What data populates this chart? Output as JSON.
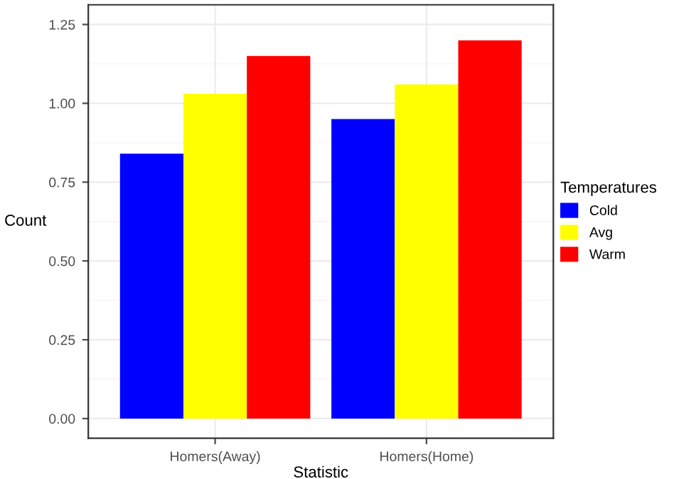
{
  "chart_data": {
    "type": "bar",
    "xlabel": "Statistic",
    "ylabel": "Count",
    "legend_title": "Temperatures",
    "categories": [
      "Homers(Away)",
      "Homers(Home)"
    ],
    "series": [
      {
        "name": "Cold",
        "color": "#0000ff",
        "values": [
          0.84,
          0.95
        ]
      },
      {
        "name": "Avg",
        "color": "#ffff00",
        "values": [
          1.03,
          1.06
        ]
      },
      {
        "name": "Warm",
        "color": "#ff0000",
        "values": [
          1.15,
          1.2
        ]
      }
    ],
    "ylim": [
      -0.0625,
      1.3125
    ],
    "yticks": [
      {
        "value": 0,
        "label": "0.00"
      },
      {
        "value": 0.25,
        "label": "0.25"
      },
      {
        "value": 0.5,
        "label": "0.50"
      },
      {
        "value": 0.75,
        "label": "0.75"
      },
      {
        "value": 1,
        "label": "1.00"
      },
      {
        "value": 1.25,
        "label": "1.25"
      }
    ],
    "grid": true,
    "legend": "right"
  }
}
